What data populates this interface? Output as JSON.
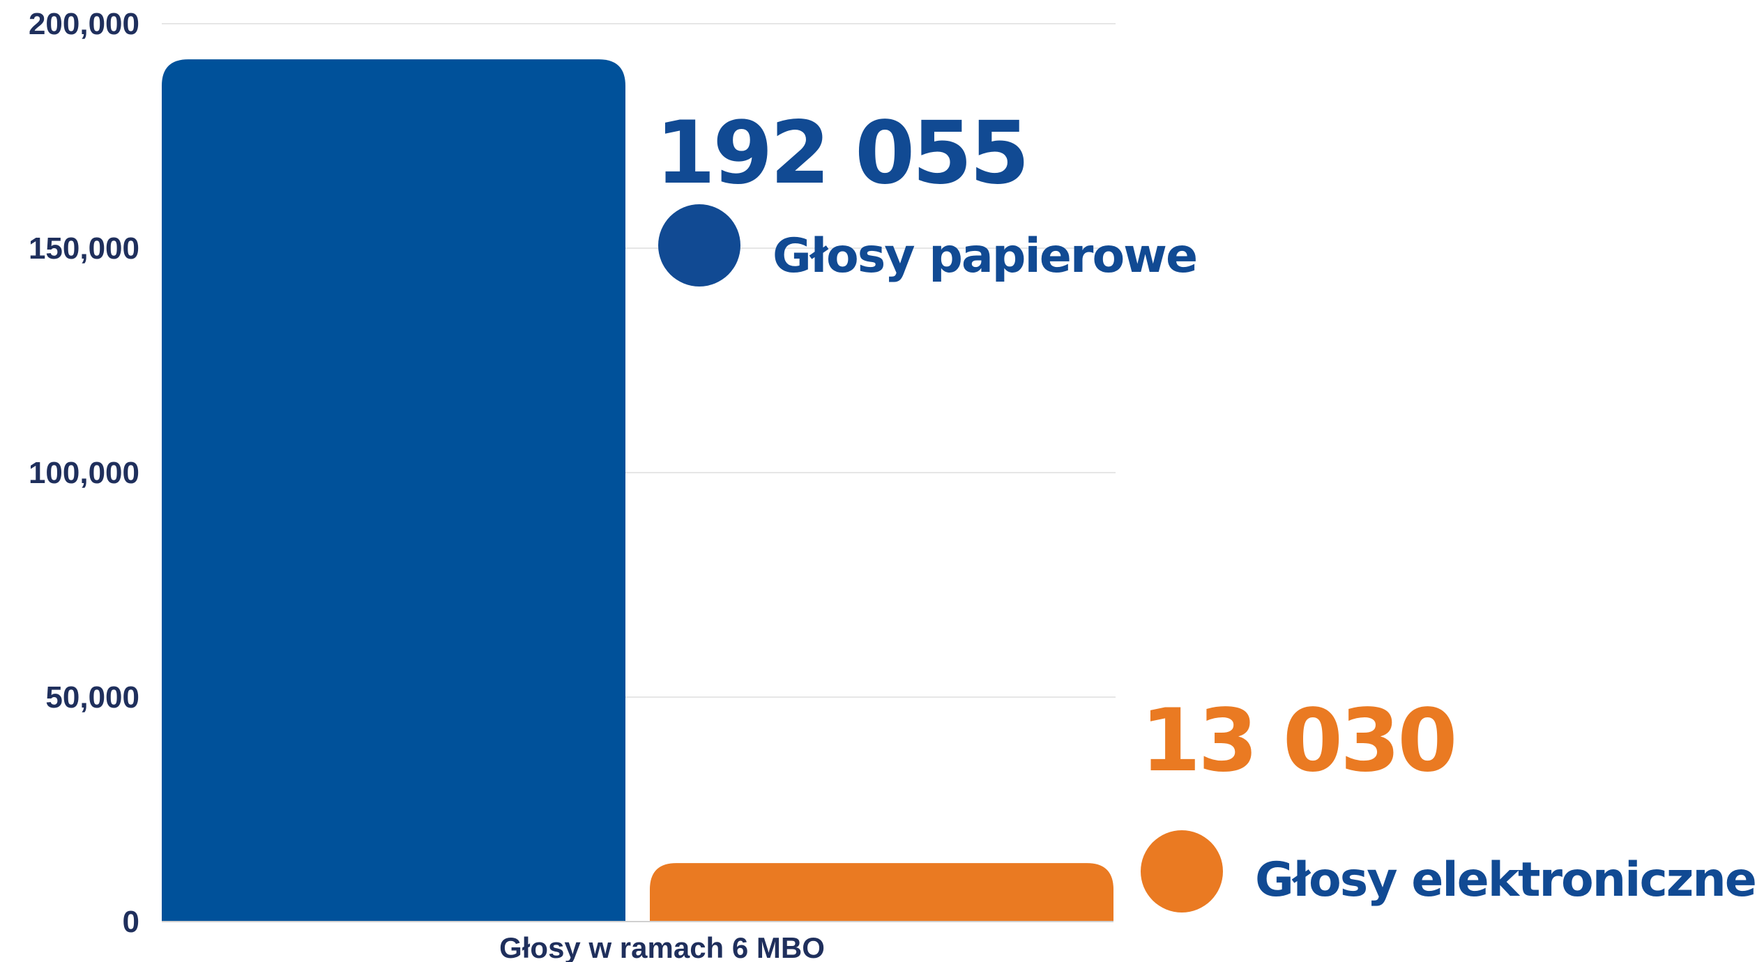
{
  "chart_data": {
    "type": "bar",
    "categories": [
      "Głosy w ramach 6 MBO"
    ],
    "series": [
      {
        "name": "Głosy papierowe",
        "values": [
          192055
        ],
        "value_label": "192 055",
        "color": "#00519a",
        "legend_color": "#114a93"
      },
      {
        "name": "Głosy elektroniczne",
        "values": [
          13030
        ],
        "value_label": "13 030",
        "color": "#ea7a22",
        "legend_color": "#ea7a22"
      }
    ],
    "title": "",
    "xlabel": "",
    "ylabel": "",
    "ylim": [
      0,
      200000
    ],
    "yticks": [
      "0",
      "50,000",
      "100,000",
      "150,000",
      "200,000"
    ],
    "grid": true,
    "legend_position": "right"
  }
}
